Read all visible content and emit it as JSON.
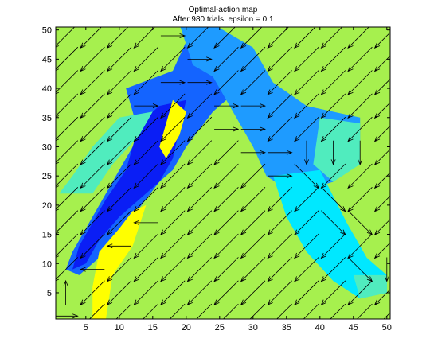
{
  "chart_data": {
    "type": "heatmap",
    "title": "Optimal-action map",
    "subtitle": "After 980 trials, epsilon = 0.1",
    "xlabel": "",
    "ylabel": "",
    "xlim": [
      0.5,
      50.5
    ],
    "ylim": [
      0.5,
      50.5
    ],
    "xticks": [
      5,
      10,
      15,
      20,
      25,
      30,
      35,
      40,
      45,
      50
    ],
    "yticks": [
      5,
      10,
      15,
      20,
      25,
      30,
      35,
      40,
      45,
      50
    ],
    "grid": false,
    "legend": "none",
    "background_action_color": "#a6f04e",
    "action_colors": {
      "yellow": "#ffff00",
      "dark_blue": "#0a1ef5",
      "blue": "#1464ff",
      "light_blue": "#1e9bff",
      "aquamarine": "#50ecbe",
      "cyan": "#00e8ff",
      "green": "#a6f04e"
    },
    "regions": [
      {
        "action": "blue",
        "polygon": [
          [
            11,
            40
          ],
          [
            18,
            43
          ],
          [
            20,
            48
          ],
          [
            25,
            47
          ],
          [
            27,
            43
          ],
          [
            27,
            39
          ],
          [
            24,
            36
          ],
          [
            22,
            33
          ],
          [
            20,
            30
          ],
          [
            18,
            26
          ],
          [
            16,
            24
          ],
          [
            14,
            21
          ],
          [
            12,
            18
          ],
          [
            10,
            15
          ],
          [
            8,
            12
          ],
          [
            6,
            10
          ],
          [
            4,
            8
          ],
          [
            2,
            9
          ],
          [
            3,
            12
          ],
          [
            5,
            16
          ],
          [
            7,
            20
          ],
          [
            9,
            24
          ],
          [
            11,
            28
          ],
          [
            13,
            32
          ],
          [
            12,
            36
          ]
        ]
      },
      {
        "action": "dark_blue",
        "polygon": [
          [
            13,
            34
          ],
          [
            16,
            37
          ],
          [
            20,
            38
          ],
          [
            19,
            33
          ],
          [
            18,
            28
          ],
          [
            16,
            24
          ],
          [
            13,
            21
          ],
          [
            10,
            18
          ],
          [
            7,
            14
          ],
          [
            5,
            10
          ],
          [
            3,
            9
          ],
          [
            4,
            13
          ],
          [
            6,
            17
          ],
          [
            8,
            21
          ],
          [
            11,
            26
          ],
          [
            12,
            30
          ]
        ]
      },
      {
        "action": "light_blue",
        "polygon": [
          [
            19,
            51
          ],
          [
            24,
            51
          ],
          [
            30,
            47
          ],
          [
            33,
            41
          ],
          [
            38,
            37
          ],
          [
            46,
            35
          ],
          [
            46,
            30
          ],
          [
            42,
            24
          ],
          [
            36,
            22
          ],
          [
            32,
            25
          ],
          [
            30,
            30
          ],
          [
            28,
            34
          ],
          [
            26,
            38
          ],
          [
            24,
            42
          ],
          [
            21,
            44
          ]
        ]
      },
      {
        "action": "aquamarine",
        "polygon": [
          [
            40,
            35
          ],
          [
            46,
            34
          ],
          [
            46,
            27
          ],
          [
            42,
            24
          ],
          [
            39,
            27
          ]
        ]
      },
      {
        "action": "aquamarine",
        "polygon": [
          [
            1,
            22
          ],
          [
            6,
            22
          ],
          [
            9,
            27
          ],
          [
            13,
            32
          ],
          [
            15,
            36
          ],
          [
            10,
            35
          ],
          [
            6,
            30
          ],
          [
            3,
            25
          ]
        ]
      },
      {
        "action": "cyan",
        "polygon": [
          [
            33,
            25
          ],
          [
            40,
            26
          ],
          [
            44,
            17
          ],
          [
            47,
            11
          ],
          [
            50,
            8
          ],
          [
            50,
            5
          ],
          [
            46,
            4
          ],
          [
            42,
            7
          ],
          [
            38,
            12
          ],
          [
            35,
            18
          ]
        ]
      },
      {
        "action": "aquamarine",
        "polygon": [
          [
            45,
            8
          ],
          [
            50,
            8
          ],
          [
            50,
            5
          ],
          [
            46,
            4
          ]
        ]
      },
      {
        "action": "yellow",
        "polygon": [
          [
            18,
            38
          ],
          [
            20,
            36
          ],
          [
            19,
            32
          ],
          [
            17,
            28
          ],
          [
            16,
            30
          ]
        ]
      },
      {
        "action": "yellow",
        "polygon": [
          [
            6,
            0.5
          ],
          [
            8,
            0.5
          ],
          [
            9,
            8
          ],
          [
            12,
            13
          ],
          [
            14,
            20
          ],
          [
            12,
            19
          ],
          [
            10,
            16
          ],
          [
            7,
            12
          ],
          [
            6,
            6
          ]
        ]
      }
    ],
    "arrows": {
      "background_direction": [
        -1,
        -1
      ],
      "region_arrows": [
        {
          "at": [
            18,
            49
          ],
          "dir": [
            1,
            0
          ]
        },
        {
          "at": [
            22,
            45
          ],
          "dir": [
            1,
            0
          ]
        },
        {
          "at": [
            18,
            41
          ],
          "dir": [
            1,
            0
          ]
        },
        {
          "at": [
            14,
            37
          ],
          "dir": [
            1,
            0
          ]
        },
        {
          "at": [
            22,
            41
          ],
          "dir": [
            1,
            0
          ]
        },
        {
          "at": [
            26,
            37
          ],
          "dir": [
            1,
            0
          ]
        },
        {
          "at": [
            30,
            37
          ],
          "dir": [
            1,
            0
          ]
        },
        {
          "at": [
            30,
            33
          ],
          "dir": [
            1,
            0
          ]
        },
        {
          "at": [
            26,
            33
          ],
          "dir": [
            1,
            0
          ]
        },
        {
          "at": [
            30,
            29
          ],
          "dir": [
            1,
            0
          ]
        },
        {
          "at": [
            34,
            29
          ],
          "dir": [
            1,
            0
          ]
        },
        {
          "at": [
            34,
            25
          ],
          "dir": [
            1,
            0
          ]
        },
        {
          "at": [
            38,
            29
          ],
          "dir": [
            0,
            -1
          ]
        },
        {
          "at": [
            42,
            29
          ],
          "dir": [
            0,
            -1
          ]
        },
        {
          "at": [
            46,
            29
          ],
          "dir": [
            0,
            -1
          ]
        },
        {
          "at": [
            38,
            25
          ],
          "dir": [
            1,
            -1
          ]
        },
        {
          "at": [
            42,
            21
          ],
          "dir": [
            1,
            -1
          ]
        },
        {
          "at": [
            46,
            17
          ],
          "dir": [
            1,
            -1
          ]
        },
        {
          "at": [
            42,
            17
          ],
          "dir": [
            1,
            -1
          ]
        },
        {
          "at": [
            46,
            9
          ],
          "dir": [
            1,
            -1
          ]
        },
        {
          "at": [
            50,
            9
          ],
          "dir": [
            0,
            -1
          ]
        },
        {
          "at": [
            2,
            5
          ],
          "dir": [
            0,
            1
          ]
        },
        {
          "at": [
            6,
            9
          ],
          "dir": [
            -1,
            0
          ]
        },
        {
          "at": [
            10,
            13
          ],
          "dir": [
            -1,
            0
          ]
        },
        {
          "at": [
            14,
            17
          ],
          "dir": [
            -1,
            0
          ]
        },
        {
          "at": [
            2,
            1
          ],
          "dir": [
            1,
            0
          ]
        }
      ]
    }
  }
}
